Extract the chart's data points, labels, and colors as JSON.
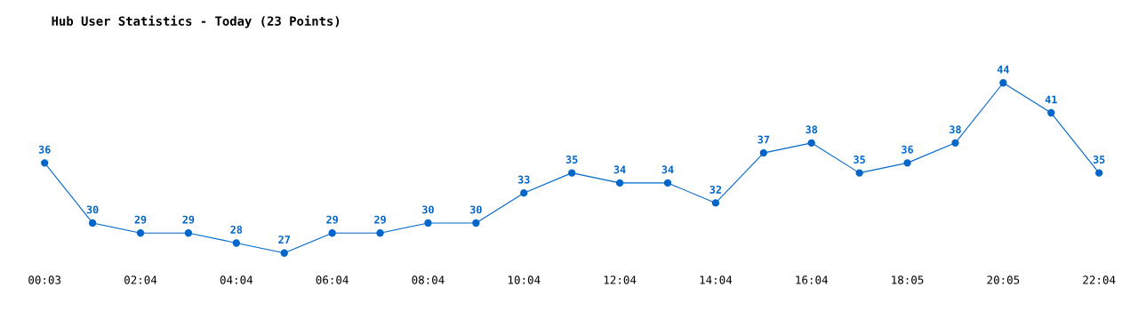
{
  "chart_data": {
    "type": "line",
    "title": "Hub User Statistics - Today (23 Points)",
    "categories": [
      "00:03",
      null,
      "02:04",
      null,
      "04:04",
      null,
      "06:04",
      null,
      "08:04",
      null,
      "10:04",
      null,
      "12:04",
      null,
      "14:04",
      null,
      "16:04",
      null,
      "18:05",
      null,
      "20:05",
      null,
      "22:04"
    ],
    "series": [
      {
        "color": "#0066cc",
        "values": [
          36,
          30,
          29,
          29,
          28,
          27,
          29,
          29,
          30,
          30,
          33,
          35,
          34,
          34,
          32,
          37,
          38,
          35,
          36,
          38,
          44,
          41,
          35
        ]
      }
    ],
    "data_labels": true,
    "marker": "circle",
    "line_style": "solid",
    "grid": false,
    "legend": false,
    "tick_labels": "x"
  }
}
